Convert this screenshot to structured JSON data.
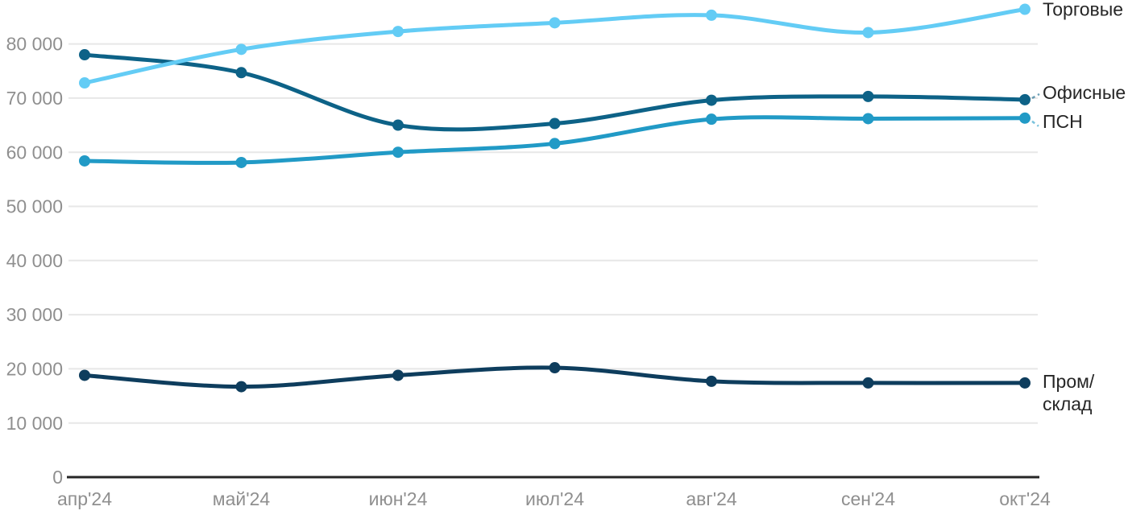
{
  "chart_data": {
    "type": "line",
    "title": "",
    "xlabel": "",
    "ylabel": "",
    "categories": [
      "апр'24",
      "май'24",
      "июн'24",
      "июл'24",
      "авг'24",
      "сен'24",
      "окт'24"
    ],
    "series": [
      {
        "id": "torgovye",
        "name": "Торговые",
        "label_lines": [
          "Торговые"
        ],
        "color": "#63ccf5",
        "values": [
          72800,
          79000,
          82300,
          83900,
          85300,
          82100,
          86400
        ]
      },
      {
        "id": "ofisnye",
        "name": "Офисные",
        "label_lines": [
          "Офисные"
        ],
        "color": "#0d6287",
        "values": [
          78000,
          74700,
          65000,
          65300,
          69600,
          70300,
          69700
        ]
      },
      {
        "id": "psn",
        "name": "ПСН",
        "label_lines": [
          "ПСН"
        ],
        "color": "#219ac6",
        "values": [
          58400,
          58100,
          60000,
          61600,
          66100,
          66200,
          66300
        ]
      },
      {
        "id": "prom-sklad",
        "name": "Пром/склад",
        "label_lines": [
          "Пром/",
          "склад"
        ],
        "color": "#0e3d5d",
        "values": [
          18800,
          16700,
          18800,
          20200,
          17700,
          17400,
          17400
        ]
      }
    ],
    "ylim": [
      0,
      87000
    ],
    "yticks": [
      0,
      10000,
      20000,
      30000,
      40000,
      50000,
      60000,
      70000,
      80000
    ],
    "ytick_labels": [
      "0",
      "10 000",
      "20 000",
      "30 000",
      "40 000",
      "50 000",
      "60 000",
      "70 000",
      "80 000"
    ],
    "grid": true,
    "legend_position": "labels-at-line-end-right",
    "points_marked": true
  },
  "colors": {
    "background": "#ffffff",
    "grid": "#e7e7e7",
    "axis": "#262626",
    "tick_text": "#8f8f8f",
    "series_label_text": "#262626"
  }
}
